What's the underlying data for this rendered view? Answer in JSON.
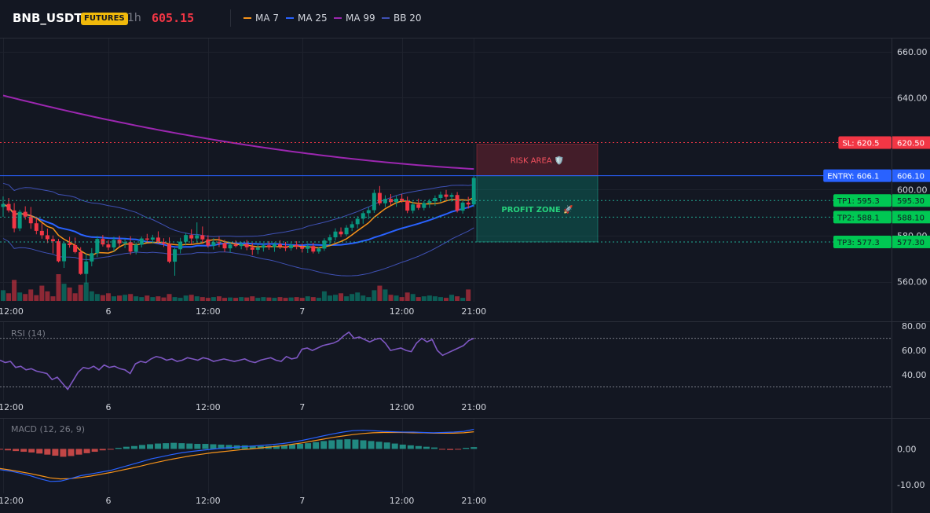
{
  "header": {
    "symbol": "BNB_USDT",
    "badge": "FUTURES",
    "timeframe": "1h",
    "price": "605.15",
    "indicators": [
      {
        "label": "MA 7",
        "color": "#f7931a"
      },
      {
        "label": "MA 25",
        "color": "#2962ff"
      },
      {
        "label": "MA 99",
        "color": "#9c27b0"
      },
      {
        "label": "BB 20",
        "color": "#3f51b5"
      }
    ]
  },
  "chart_data": [
    {
      "type": "candlestick",
      "title": "BNB_USDT",
      "ylim": [
        540,
        665
      ],
      "y_ticks": [
        "660.00",
        "640.00",
        "600.00",
        "580.00",
        "560.00"
      ],
      "x_ticks": [
        "12:00",
        "6",
        "12:00",
        "7",
        "12:00",
        "21:00"
      ],
      "candles": [
        {
          "o": 592.5,
          "h": 597.1,
          "l": 588.2,
          "c": 593.8
        },
        {
          "o": 593.8,
          "h": 596.4,
          "l": 590.1,
          "c": 591.0
        },
        {
          "o": 591.0,
          "h": 594.2,
          "l": 581.5,
          "c": 583.2
        },
        {
          "o": 583.2,
          "h": 591.3,
          "l": 582.0,
          "c": 590.4
        },
        {
          "o": 590.4,
          "h": 592.8,
          "l": 587.0,
          "c": 588.3
        },
        {
          "o": 588.3,
          "h": 592.5,
          "l": 583.0,
          "c": 585.4
        },
        {
          "o": 585.4,
          "h": 588.0,
          "l": 580.6,
          "c": 582.1
        },
        {
          "o": 582.1,
          "h": 585.4,
          "l": 578.7,
          "c": 580.2
        },
        {
          "o": 580.2,
          "h": 583.1,
          "l": 576.8,
          "c": 578.5
        },
        {
          "o": 578.5,
          "h": 580.1,
          "l": 572.3,
          "c": 577.6
        },
        {
          "o": 577.6,
          "h": 578.6,
          "l": 568.4,
          "c": 568.9
        },
        {
          "o": 568.9,
          "h": 577.4,
          "l": 566.0,
          "c": 576.7
        },
        {
          "o": 576.7,
          "h": 579.5,
          "l": 574.8,
          "c": 575.9
        },
        {
          "o": 575.9,
          "h": 579.2,
          "l": 572.3,
          "c": 572.9
        },
        {
          "o": 572.9,
          "h": 575.0,
          "l": 563.0,
          "c": 563.4
        },
        {
          "o": 563.4,
          "h": 572.3,
          "l": 559.2,
          "c": 568.8
        },
        {
          "o": 568.8,
          "h": 574.6,
          "l": 566.7,
          "c": 572.4
        },
        {
          "o": 572.4,
          "h": 579.9,
          "l": 570.7,
          "c": 578.6
        },
        {
          "o": 578.6,
          "h": 580.3,
          "l": 575.3,
          "c": 576.2
        },
        {
          "o": 576.2,
          "h": 578.0,
          "l": 573.7,
          "c": 574.9
        },
        {
          "o": 574.9,
          "h": 579.5,
          "l": 573.1,
          "c": 578.2
        },
        {
          "o": 578.2,
          "h": 580.0,
          "l": 575.2,
          "c": 576.7
        },
        {
          "o": 576.7,
          "h": 578.7,
          "l": 574.6,
          "c": 577.2
        },
        {
          "o": 577.2,
          "h": 579.8,
          "l": 571.7,
          "c": 573.1
        },
        {
          "o": 573.1,
          "h": 577.1,
          "l": 571.9,
          "c": 576.1
        },
        {
          "o": 576.1,
          "h": 579.6,
          "l": 574.9,
          "c": 578.8
        },
        {
          "o": 578.8,
          "h": 580.8,
          "l": 577.2,
          "c": 578.3
        },
        {
          "o": 578.3,
          "h": 580.4,
          "l": 576.6,
          "c": 579.2
        },
        {
          "o": 579.2,
          "h": 581.9,
          "l": 576.4,
          "c": 577.3
        },
        {
          "o": 577.3,
          "h": 578.9,
          "l": 575.1,
          "c": 576.5
        },
        {
          "o": 576.5,
          "h": 579.3,
          "l": 568.0,
          "c": 568.7
        },
        {
          "o": 568.7,
          "h": 574.6,
          "l": 562.6,
          "c": 574.1
        },
        {
          "o": 574.1,
          "h": 579.1,
          "l": 572.3,
          "c": 577.4
        },
        {
          "o": 577.4,
          "h": 581.3,
          "l": 575.8,
          "c": 580.3
        },
        {
          "o": 580.3,
          "h": 582.8,
          "l": 576.1,
          "c": 578.8
        },
        {
          "o": 578.8,
          "h": 585.8,
          "l": 577.5,
          "c": 580.2
        },
        {
          "o": 580.2,
          "h": 584.0,
          "l": 577.0,
          "c": 578.4
        },
        {
          "o": 578.4,
          "h": 580.2,
          "l": 574.8,
          "c": 575.7
        },
        {
          "o": 575.7,
          "h": 578.9,
          "l": 574.0,
          "c": 577.2
        },
        {
          "o": 577.2,
          "h": 579.6,
          "l": 575.1,
          "c": 576.8
        },
        {
          "o": 576.8,
          "h": 578.2,
          "l": 573.0,
          "c": 574.5
        },
        {
          "o": 574.5,
          "h": 577.4,
          "l": 572.6,
          "c": 576.1
        },
        {
          "o": 576.1,
          "h": 578.0,
          "l": 574.9,
          "c": 575.5
        },
        {
          "o": 575.5,
          "h": 577.3,
          "l": 574.1,
          "c": 576.4
        },
        {
          "o": 576.4,
          "h": 578.1,
          "l": 573.7,
          "c": 575.0
        },
        {
          "o": 575.0,
          "h": 576.7,
          "l": 571.6,
          "c": 573.9
        },
        {
          "o": 573.9,
          "h": 576.5,
          "l": 572.0,
          "c": 574.8
        },
        {
          "o": 574.8,
          "h": 576.8,
          "l": 573.1,
          "c": 575.8
        },
        {
          "o": 575.8,
          "h": 577.6,
          "l": 573.9,
          "c": 575.1
        },
        {
          "o": 575.1,
          "h": 577.1,
          "l": 573.0,
          "c": 576.3
        },
        {
          "o": 576.3,
          "h": 578.0,
          "l": 574.2,
          "c": 575.4
        },
        {
          "o": 575.4,
          "h": 577.3,
          "l": 573.3,
          "c": 574.6
        },
        {
          "o": 574.6,
          "h": 577.0,
          "l": 573.5,
          "c": 576.0
        },
        {
          "o": 576.0,
          "h": 577.6,
          "l": 574.1,
          "c": 575.2
        },
        {
          "o": 575.2,
          "h": 576.6,
          "l": 572.7,
          "c": 574.3
        },
        {
          "o": 574.3,
          "h": 576.7,
          "l": 572.5,
          "c": 575.5
        },
        {
          "o": 575.5,
          "h": 576.9,
          "l": 572.3,
          "c": 573.1
        },
        {
          "o": 573.1,
          "h": 575.1,
          "l": 572.2,
          "c": 574.4
        },
        {
          "o": 574.4,
          "h": 578.9,
          "l": 573.4,
          "c": 577.9
        },
        {
          "o": 577.9,
          "h": 580.5,
          "l": 575.8,
          "c": 579.3
        },
        {
          "o": 579.3,
          "h": 583.2,
          "l": 577.9,
          "c": 581.8
        },
        {
          "o": 581.8,
          "h": 583.6,
          "l": 579.5,
          "c": 580.6
        },
        {
          "o": 580.6,
          "h": 584.6,
          "l": 579.8,
          "c": 583.5
        },
        {
          "o": 583.5,
          "h": 586.3,
          "l": 582.0,
          "c": 585.0
        },
        {
          "o": 585.0,
          "h": 588.5,
          "l": 583.2,
          "c": 587.4
        },
        {
          "o": 587.4,
          "h": 590.7,
          "l": 585.2,
          "c": 589.8
        },
        {
          "o": 589.8,
          "h": 592.4,
          "l": 587.2,
          "c": 591.1
        },
        {
          "o": 591.1,
          "h": 600.0,
          "l": 589.9,
          "c": 598.6
        },
        {
          "o": 598.6,
          "h": 601.6,
          "l": 593.2,
          "c": 594.1
        },
        {
          "o": 594.1,
          "h": 597.6,
          "l": 592.4,
          "c": 596.0
        },
        {
          "o": 596.0,
          "h": 598.1,
          "l": 593.2,
          "c": 594.6
        },
        {
          "o": 594.6,
          "h": 597.6,
          "l": 592.6,
          "c": 596.1
        },
        {
          "o": 596.1,
          "h": 598.1,
          "l": 594.3,
          "c": 595.1
        },
        {
          "o": 595.1,
          "h": 597.0,
          "l": 589.8,
          "c": 590.9
        },
        {
          "o": 590.9,
          "h": 594.9,
          "l": 589.7,
          "c": 593.6
        },
        {
          "o": 593.6,
          "h": 596.1,
          "l": 591.2,
          "c": 592.1
        },
        {
          "o": 592.1,
          "h": 595.1,
          "l": 591.0,
          "c": 594.2
        },
        {
          "o": 594.2,
          "h": 596.0,
          "l": 592.1,
          "c": 595.0
        },
        {
          "o": 595.0,
          "h": 597.5,
          "l": 593.0,
          "c": 596.4
        },
        {
          "o": 596.4,
          "h": 599.2,
          "l": 594.6,
          "c": 597.9
        },
        {
          "o": 597.9,
          "h": 599.9,
          "l": 595.6,
          "c": 596.9
        },
        {
          "o": 596.9,
          "h": 598.6,
          "l": 594.8,
          "c": 597.7
        },
        {
          "o": 597.7,
          "h": 599.0,
          "l": 590.1,
          "c": 590.9
        },
        {
          "o": 590.9,
          "h": 595.1,
          "l": 589.6,
          "c": 594.4
        },
        {
          "o": 594.4,
          "h": 596.9,
          "l": 591.8,
          "c": 593.6
        },
        {
          "o": 593.6,
          "h": 606.1,
          "l": 592.5,
          "c": 605.15
        }
      ],
      "volume": [
        28,
        20,
        55,
        22,
        18,
        30,
        15,
        40,
        25,
        12,
        70,
        45,
        35,
        20,
        42,
        48,
        25,
        18,
        15,
        20,
        12,
        14,
        16,
        18,
        12,
        10,
        14,
        10,
        12,
        9,
        18,
        10,
        8,
        14,
        16,
        12,
        10,
        8,
        10,
        12,
        8,
        9,
        8,
        10,
        9,
        12,
        8,
        10,
        9,
        8,
        10,
        8,
        9,
        10,
        8,
        12,
        10,
        8,
        25,
        14,
        16,
        20,
        12,
        18,
        22,
        14,
        10,
        28,
        40,
        30,
        16,
        14,
        10,
        22,
        18,
        10,
        12,
        14,
        12,
        10,
        8,
        16,
        12,
        8,
        30
      ],
      "ma7_color": "#f7931a",
      "ma25_color": "#2962ff",
      "ma99_color": "#9c27b0",
      "bb_color": "#3f51b5",
      "up_color": "#089981",
      "down_color": "#f23645"
    },
    {
      "type": "line",
      "title": "RSI (14)",
      "ylim": [
        20,
        82
      ],
      "y_ticks": [
        "80.00",
        "60.00",
        "40.00"
      ],
      "levels": [
        70,
        30
      ],
      "values": [
        52,
        50,
        51,
        46,
        47,
        44,
        45,
        43,
        42,
        41,
        36,
        38,
        33,
        28,
        35,
        42,
        46,
        45,
        47,
        44,
        48,
        46,
        47,
        45,
        44,
        41,
        49,
        51,
        50,
        53,
        55,
        54,
        52,
        53,
        51,
        52,
        54,
        53,
        52,
        54,
        53,
        51,
        52,
        53,
        52,
        51,
        52,
        53,
        51,
        50,
        52,
        53,
        54,
        52,
        51,
        55,
        53,
        54,
        61,
        62,
        60,
        62,
        64,
        65,
        66,
        68,
        72,
        75,
        70,
        71,
        69,
        67,
        69,
        70,
        66,
        60,
        61,
        62,
        60,
        59,
        66,
        70,
        67,
        69,
        60,
        56,
        58,
        60,
        62,
        64,
        68,
        70
      ],
      "color": "#7e57c2"
    },
    {
      "type": "bar",
      "title": "MACD (12, 26, 9)",
      "ylim": [
        -12,
        8
      ],
      "y_ticks": [
        "0.00",
        "-10.00"
      ],
      "histogram": [
        -0.2,
        -0.4,
        -0.6,
        -0.8,
        -1.0,
        -1.3,
        -1.6,
        -1.9,
        -2.2,
        -2.0,
        -1.6,
        -1.2,
        -0.8,
        -0.4,
        -0.1,
        0.3,
        0.6,
        0.8,
        1.1,
        1.3,
        1.5,
        1.6,
        1.7,
        1.6,
        1.5,
        1.4,
        1.4,
        1.3,
        1.2,
        1.1,
        1.0,
        1.0,
        0.9,
        0.8,
        0.8,
        0.9,
        1.0,
        1.2,
        1.4,
        1.6,
        1.9,
        2.2,
        2.4,
        2.6,
        2.7,
        2.6,
        2.4,
        2.2,
        2.0,
        1.8,
        1.5,
        1.2,
        1.0,
        0.8,
        0.6,
        0.4,
        -0.2,
        -0.3,
        -0.2,
        0.3,
        0.5
      ],
      "macd": [
        -5.8,
        -6.2,
        -6.8,
        -7.5,
        -8.4,
        -9.1,
        -9.0,
        -8.3,
        -7.5,
        -7.0,
        -6.5,
        -6.0,
        -5.2,
        -4.4,
        -3.6,
        -2.8,
        -2.2,
        -1.6,
        -1.1,
        -0.7,
        -0.4,
        -0.1,
        0.2,
        0.4,
        0.6,
        0.8,
        1.0,
        1.2,
        1.5,
        1.9,
        2.4,
        3.0,
        3.6,
        4.2,
        4.7,
        5.1,
        5.2,
        5.1,
        4.9,
        4.8,
        4.7,
        4.7,
        4.6,
        4.5,
        4.6,
        4.7,
        4.9,
        5.5
      ],
      "signal": [
        -5.5,
        -5.9,
        -6.4,
        -6.9,
        -7.5,
        -8.1,
        -8.4,
        -8.3,
        -8.0,
        -7.6,
        -7.1,
        -6.6,
        -6.0,
        -5.4,
        -4.8,
        -4.1,
        -3.5,
        -2.9,
        -2.4,
        -1.9,
        -1.5,
        -1.1,
        -0.8,
        -0.5,
        -0.2,
        0.0,
        0.3,
        0.6,
        0.9,
        1.3,
        1.7,
        2.2,
        2.7,
        3.2,
        3.6,
        4.0,
        4.3,
        4.5,
        4.6,
        4.6,
        4.6,
        4.5,
        4.5,
        4.4,
        4.4,
        4.4,
        4.5,
        4.8
      ],
      "macd_color": "#2962ff",
      "signal_color": "#f7931a"
    }
  ],
  "trade": {
    "risk_label": "RISK AREA 🛡️",
    "profit_label": "PROFIT ZONE 🚀",
    "sl_label": "SL: 620.5",
    "sl_value": 620.5,
    "sl_axis": "620.50",
    "entry_label": "ENTRY: 606.1",
    "entry_value": 606.1,
    "entry_axis": "606.10",
    "tp": [
      {
        "label": "TP1: 595.3",
        "value": 595.3,
        "axis": "595.30"
      },
      {
        "label": "TP2: 588.1",
        "value": 588.1,
        "axis": "588.10"
      },
      {
        "label": "TP3: 577.3",
        "value": 577.3,
        "axis": "577.30"
      }
    ]
  }
}
